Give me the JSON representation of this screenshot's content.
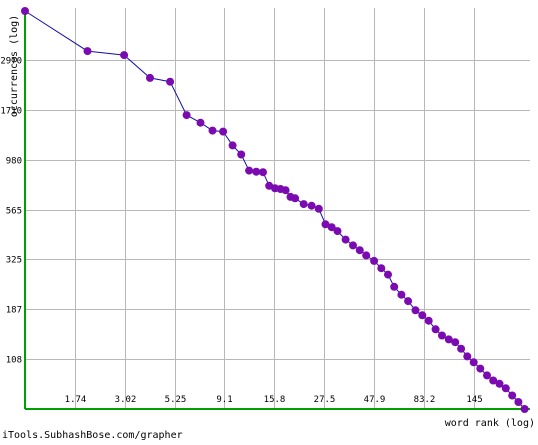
{
  "chart_data": {
    "type": "line",
    "xlabel": "word rank (log)",
    "ylabel": "occurrences (log)",
    "x_scale": "log",
    "y_scale": "log",
    "xlim": [
      1,
      256
    ],
    "ylim": [
      62,
      5100
    ],
    "grid": true,
    "x_ticks": [
      "1.74",
      "3.02",
      "5.25",
      "9.1",
      "15.8",
      "27.5",
      "47.9",
      "83.2",
      "145"
    ],
    "y_ticks": [
      "2970",
      "1710",
      "980",
      "565",
      "325",
      "187",
      "108"
    ],
    "series": [
      {
        "color": "#7b0bb0",
        "line_color": "#1010aa",
        "x": [
          1,
          2,
          3,
          4,
          5,
          6,
          7,
          8,
          9,
          10,
          11,
          12,
          13,
          14,
          15,
          16,
          17,
          18,
          19,
          20,
          22,
          24,
          26,
          28,
          30,
          32,
          35,
          38,
          41,
          44,
          48,
          52,
          56,
          60,
          65,
          70,
          76,
          82,
          88,
          95,
          102,
          110,
          118,
          126,
          135,
          145,
          156,
          168,
          180,
          193,
          207,
          222,
          238,
          255
        ],
        "y": [
          5100,
          3270,
          3130,
          2430,
          2330,
          1610,
          1480,
          1355,
          1340,
          1150,
          1040,
          870,
          860,
          855,
          735,
          715,
          710,
          700,
          650,
          640,
          600,
          590,
          570,
          480,
          465,
          445,
          405,
          380,
          360,
          340,
          320,
          295,
          275,
          240,
          220,
          205,
          185,
          175,
          165,
          150,
          140,
          134,
          130,
          121,
          111,
          104,
          97,
          90,
          85,
          82,
          78,
          72,
          67,
          62
        ]
      }
    ]
  },
  "footer": {
    "credit": "iTools.SubhashBose.com/grapher"
  }
}
